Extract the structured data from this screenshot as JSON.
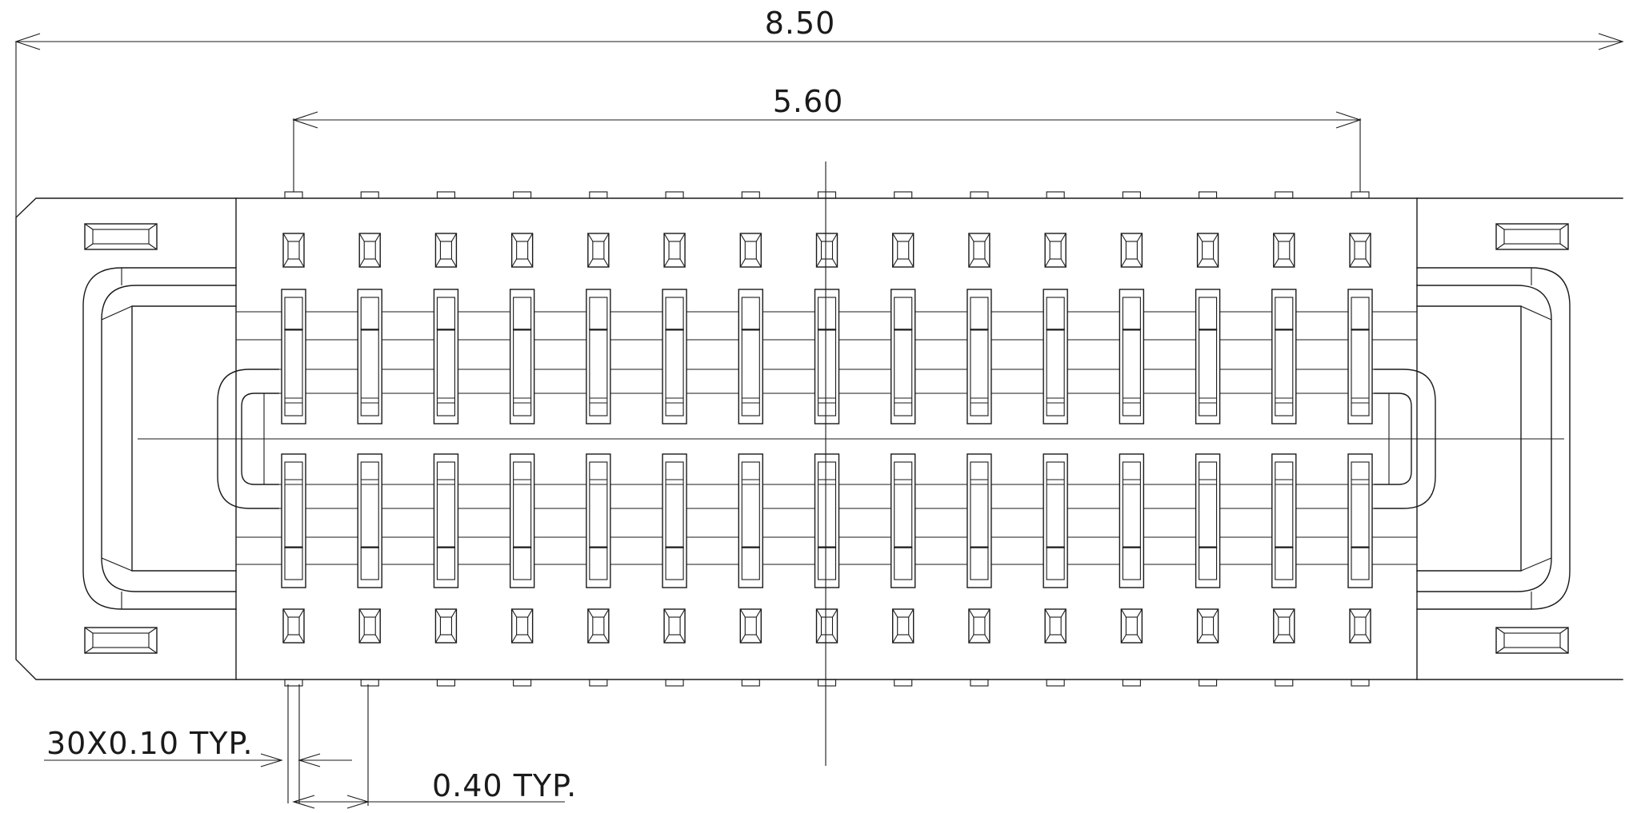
{
  "drawing": {
    "pin_count_per_row": 15,
    "rows": 2,
    "dimensions": {
      "overall_width": "8.50",
      "pin_span": "5.60",
      "pin_width_note": "30X0.10 TYP.",
      "pitch_note": "0.40 TYP."
    },
    "line_color": "#1a1a1a",
    "background_color": "#ffffff"
  }
}
